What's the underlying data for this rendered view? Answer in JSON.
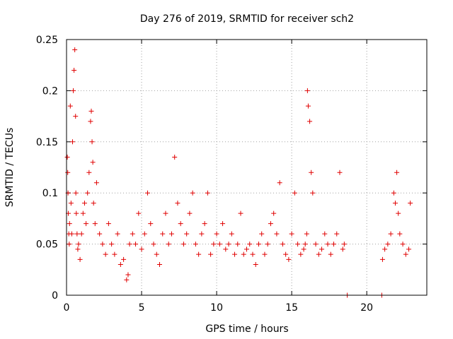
{
  "chart_data": {
    "type": "scatter",
    "title": "Day 276 of 2019, SRMTID for receiver sch2",
    "xlabel": "GPS time / hours",
    "ylabel": "SRMTID / TECUs",
    "xlim": [
      0,
      24
    ],
    "ylim": [
      0,
      0.25
    ],
    "x_ticks": [
      0,
      5,
      10,
      15,
      20
    ],
    "x_tick_labels": [
      "0",
      "5",
      "10",
      "15",
      "20"
    ],
    "y_ticks": [
      0,
      0.05,
      0.1,
      0.15,
      0.2,
      0.25
    ],
    "y_tick_labels": [
      "0",
      "0.05",
      "0.1",
      "0.15",
      "0.2",
      "0.25"
    ],
    "grid": true,
    "marker": "+",
    "series": [
      {
        "name": "sch2",
        "color": "#e00000",
        "x": [
          0.05,
          0.08,
          0.1,
          0.12,
          0.15,
          0.18,
          0.2,
          0.25,
          0.3,
          0.35,
          0.4,
          0.45,
          0.5,
          0.55,
          0.6,
          0.62,
          0.65,
          0.7,
          0.75,
          0.8,
          0.9,
          1.0,
          1.1,
          1.2,
          1.3,
          1.4,
          1.5,
          1.6,
          1.65,
          1.7,
          1.75,
          1.8,
          1.9,
          2.0,
          2.2,
          2.4,
          2.6,
          2.8,
          3.0,
          3.2,
          3.4,
          3.6,
          3.8,
          4.0,
          4.1,
          4.2,
          4.4,
          4.6,
          4.8,
          5.0,
          5.2,
          5.4,
          5.6,
          5.8,
          6.0,
          6.2,
          6.4,
          6.6,
          6.8,
          7.0,
          7.2,
          7.4,
          7.6,
          7.8,
          8.0,
          8.2,
          8.4,
          8.6,
          8.8,
          9.0,
          9.2,
          9.4,
          9.6,
          9.8,
          10.0,
          10.2,
          10.4,
          10.6,
          10.8,
          11.0,
          11.2,
          11.4,
          11.6,
          11.8,
          12.0,
          12.2,
          12.4,
          12.6,
          12.8,
          13.0,
          13.2,
          13.4,
          13.6,
          13.8,
          14.0,
          14.2,
          14.4,
          14.6,
          14.8,
          15.0,
          15.2,
          15.4,
          15.6,
          15.8,
          15.9,
          16.0,
          16.05,
          16.1,
          16.2,
          16.3,
          16.4,
          16.6,
          16.8,
          17.0,
          17.2,
          17.4,
          17.6,
          17.8,
          18.0,
          18.2,
          18.4,
          18.5,
          18.7,
          21.0,
          21.05,
          21.2,
          21.4,
          21.6,
          21.8,
          21.9,
          22.0,
          22.1,
          22.2,
          22.4,
          22.6,
          22.8,
          22.9
        ],
        "y": [
          0.135,
          0.12,
          0.1,
          0.08,
          0.06,
          0.05,
          0.07,
          0.185,
          0.09,
          0.06,
          0.15,
          0.2,
          0.22,
          0.24,
          0.175,
          0.1,
          0.08,
          0.06,
          0.045,
          0.05,
          0.035,
          0.06,
          0.08,
          0.09,
          0.07,
          0.1,
          0.12,
          0.17,
          0.18,
          0.15,
          0.13,
          0.09,
          0.07,
          0.11,
          0.06,
          0.05,
          0.04,
          0.07,
          0.05,
          0.04,
          0.06,
          0.03,
          0.035,
          0.015,
          0.02,
          0.05,
          0.06,
          0.05,
          0.08,
          0.045,
          0.06,
          0.1,
          0.07,
          0.05,
          0.04,
          0.03,
          0.06,
          0.08,
          0.05,
          0.06,
          0.135,
          0.09,
          0.07,
          0.05,
          0.06,
          0.08,
          0.1,
          0.05,
          0.04,
          0.06,
          0.07,
          0.1,
          0.04,
          0.05,
          0.06,
          0.05,
          0.07,
          0.045,
          0.05,
          0.06,
          0.04,
          0.05,
          0.08,
          0.04,
          0.045,
          0.05,
          0.04,
          0.03,
          0.05,
          0.06,
          0.04,
          0.05,
          0.07,
          0.08,
          0.06,
          0.11,
          0.05,
          0.04,
          0.035,
          0.06,
          0.1,
          0.05,
          0.04,
          0.045,
          0.05,
          0.06,
          0.2,
          0.185,
          0.17,
          0.12,
          0.1,
          0.05,
          0.04,
          0.045,
          0.06,
          0.05,
          0.04,
          0.05,
          0.06,
          0.12,
          0.045,
          0.05,
          0.0,
          0.0,
          0.035,
          0.045,
          0.05,
          0.06,
          0.1,
          0.09,
          0.12,
          0.08,
          0.06,
          0.05,
          0.04,
          0.045,
          0.09
        ]
      }
    ]
  }
}
